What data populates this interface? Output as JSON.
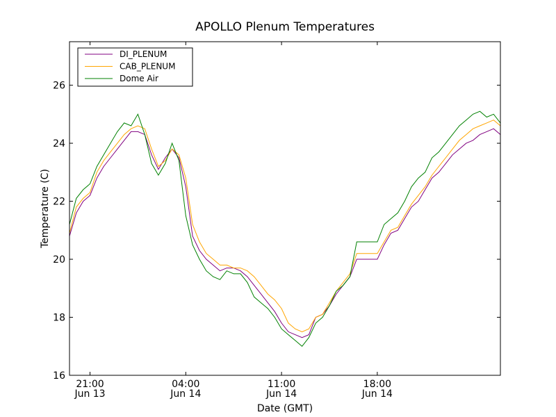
{
  "chart_data": {
    "type": "line",
    "title": "APOLLO Plenum Temperatures",
    "xlabel": "Date (GMT)",
    "ylabel": "Temperature (C)",
    "ylim": [
      16,
      27.5
    ],
    "xlim_hours": [
      0,
      31.5
    ],
    "x_start": "Jun 13 19:30",
    "y_ticks": [
      16,
      18,
      20,
      22,
      24,
      26
    ],
    "x_ticks": [
      {
        "hour": 1.5,
        "time": "21:00",
        "date": "Jun 13"
      },
      {
        "hour": 8.5,
        "time": "04:00",
        "date": "Jun 14"
      },
      {
        "hour": 15.5,
        "time": "11:00",
        "date": "Jun 14"
      },
      {
        "hour": 22.5,
        "time": "18:00",
        "date": "Jun 14"
      }
    ],
    "legend_position": "top-left",
    "series": [
      {
        "name": "DI_PLENUM",
        "color": "#800080",
        "x": [
          0,
          0.5,
          1,
          1.5,
          2,
          2.5,
          3,
          3.5,
          4,
          4.5,
          5,
          5.5,
          6,
          6.5,
          7,
          7.5,
          8,
          8.5,
          9,
          9.5,
          10,
          10.5,
          11,
          11.5,
          12,
          12.5,
          13,
          13.5,
          14,
          14.5,
          15,
          15.5,
          16,
          16.5,
          17,
          17.5,
          18,
          18.5,
          19,
          19.5,
          20,
          20.5,
          21,
          21.5,
          22,
          22.5,
          23,
          23.5,
          24,
          24.5,
          25,
          25.5,
          26,
          26.5,
          27,
          27.5,
          28,
          28.5,
          29,
          29.5,
          30,
          30.5,
          31,
          31.5
        ],
        "y": [
          20.8,
          21.6,
          22.0,
          22.2,
          22.8,
          23.2,
          23.5,
          23.8,
          24.1,
          24.4,
          24.4,
          24.3,
          23.6,
          23.1,
          23.5,
          23.8,
          23.5,
          22.5,
          20.8,
          20.3,
          20.0,
          19.8,
          19.6,
          19.7,
          19.7,
          19.6,
          19.4,
          19.1,
          18.8,
          18.5,
          18.2,
          17.8,
          17.5,
          17.4,
          17.3,
          17.4,
          18.0,
          18.1,
          18.4,
          18.8,
          19.1,
          19.4,
          20.0,
          20.0,
          20.0,
          20.0,
          20.5,
          20.9,
          21.0,
          21.4,
          21.8,
          22.0,
          22.4,
          22.8,
          23.0,
          23.3,
          23.6,
          23.8,
          24.0,
          24.1,
          24.3,
          24.4,
          24.5,
          24.3
        ]
      },
      {
        "name": "CAB_PLENUM",
        "color": "#FFA500",
        "x": [
          0,
          0.5,
          1,
          1.5,
          2,
          2.5,
          3,
          3.5,
          4,
          4.5,
          5,
          5.5,
          6,
          6.5,
          7,
          7.5,
          8,
          8.5,
          9,
          9.5,
          10,
          10.5,
          11,
          11.5,
          12,
          12.5,
          13,
          13.5,
          14,
          14.5,
          15,
          15.5,
          16,
          16.5,
          17,
          17.5,
          18,
          18.5,
          19,
          19.5,
          20,
          20.5,
          21,
          21.5,
          22,
          22.5,
          23,
          23.5,
          24,
          24.5,
          25,
          25.5,
          26,
          26.5,
          27,
          27.5,
          28,
          28.5,
          29,
          29.5,
          30,
          30.5,
          31,
          31.5
        ],
        "y": [
          20.9,
          21.8,
          22.1,
          22.3,
          23.0,
          23.4,
          23.7,
          24.0,
          24.3,
          24.5,
          24.6,
          24.5,
          23.8,
          23.2,
          23.4,
          23.8,
          23.6,
          22.8,
          21.2,
          20.6,
          20.2,
          20.0,
          19.8,
          19.8,
          19.7,
          19.7,
          19.6,
          19.4,
          19.1,
          18.8,
          18.6,
          18.3,
          17.8,
          17.6,
          17.5,
          17.6,
          18.0,
          18.1,
          18.5,
          18.9,
          19.2,
          19.5,
          20.2,
          20.2,
          20.2,
          20.2,
          20.6,
          21.0,
          21.1,
          21.5,
          21.9,
          22.2,
          22.5,
          22.9,
          23.2,
          23.5,
          23.8,
          24.1,
          24.3,
          24.5,
          24.6,
          24.7,
          24.8,
          24.6
        ]
      },
      {
        "name": "Dome Air",
        "color": "#008000",
        "x": [
          0,
          0.5,
          1,
          1.5,
          2,
          2.5,
          3,
          3.5,
          4,
          4.5,
          5,
          5.5,
          6,
          6.5,
          7,
          7.5,
          8,
          8.5,
          9,
          9.5,
          10,
          10.5,
          11,
          11.5,
          12,
          12.5,
          13,
          13.5,
          14,
          14.5,
          15,
          15.5,
          16,
          16.5,
          17,
          17.5,
          18,
          18.5,
          19,
          19.5,
          20,
          20.5,
          21,
          21.5,
          22,
          22.5,
          23,
          23.5,
          24,
          24.5,
          25,
          25.5,
          26,
          26.5,
          27,
          27.5,
          28,
          28.5,
          29,
          29.5,
          30,
          30.5,
          31,
          31.5
        ],
        "y": [
          21.2,
          22.1,
          22.4,
          22.6,
          23.2,
          23.6,
          24.0,
          24.4,
          24.7,
          24.6,
          25.0,
          24.3,
          23.3,
          22.9,
          23.3,
          24.0,
          23.4,
          21.5,
          20.5,
          20.0,
          19.6,
          19.4,
          19.3,
          19.6,
          19.5,
          19.5,
          19.2,
          18.7,
          18.5,
          18.3,
          18.0,
          17.6,
          17.4,
          17.2,
          17.0,
          17.3,
          17.8,
          18.0,
          18.4,
          18.9,
          19.1,
          19.4,
          20.6,
          20.6,
          20.6,
          20.6,
          21.2,
          21.4,
          21.6,
          22.0,
          22.5,
          22.8,
          23.0,
          23.5,
          23.7,
          24.0,
          24.3,
          24.6,
          24.8,
          25.0,
          25.1,
          24.9,
          25.0,
          24.7
        ]
      }
    ]
  }
}
